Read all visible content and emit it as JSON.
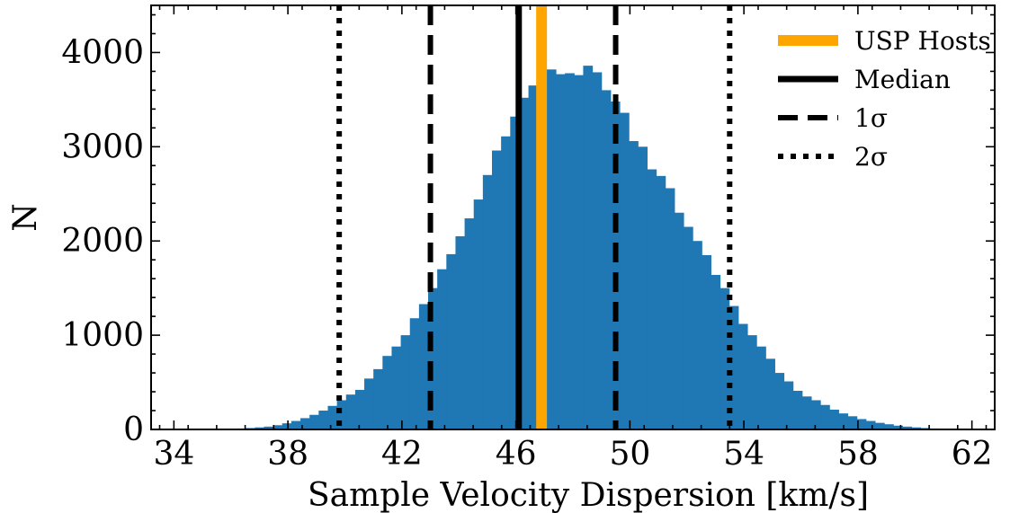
{
  "chart_data": {
    "type": "bar",
    "xlabel": "Sample Velocity Dispersion [km/s]",
    "ylabel": "N",
    "xlim": [
      33.2,
      62.8
    ],
    "ylim": [
      0,
      4500
    ],
    "x_ticks": [
      34,
      38,
      42,
      46,
      50,
      54,
      58,
      62
    ],
    "x_tick_labels": [
      "34",
      "38",
      "42",
      "46",
      "50",
      "54",
      "58",
      "62"
    ],
    "y_ticks": [
      0,
      1000,
      2000,
      3000,
      4000
    ],
    "y_tick_labels": [
      "0",
      "1000",
      "2000",
      "3000",
      "4000"
    ],
    "grid": false,
    "legend_position": "top-right",
    "histogram": {
      "color": "#1f77b4",
      "bin_start": 36.2,
      "bin_width": 0.32,
      "counts": [
        10,
        15,
        22,
        30,
        45,
        65,
        90,
        120,
        155,
        200,
        250,
        310,
        370,
        420,
        540,
        640,
        780,
        880,
        1000,
        1180,
        1330,
        1500,
        1700,
        1860,
        2050,
        2240,
        2440,
        2700,
        2960,
        3110,
        3320,
        3520,
        3650,
        3750,
        3820,
        3770,
        3780,
        3760,
        3860,
        3790,
        3600,
        3480,
        3360,
        3060,
        3000,
        2760,
        2690,
        2560,
        2300,
        2150,
        2000,
        1850,
        1640,
        1500,
        1310,
        1120,
        1000,
        880,
        750,
        600,
        510,
        410,
        350,
        310,
        260,
        210,
        170,
        140,
        110,
        90,
        70,
        55,
        40,
        30,
        22,
        15,
        10,
        6,
        4,
        2
      ]
    },
    "vertical_lines": [
      {
        "name": "USP Hosts",
        "x": 46.9,
        "color": "#ffa500",
        "style": "solid",
        "kind": "usp"
      },
      {
        "name": "Median",
        "x": 46.1,
        "color": "#000000",
        "style": "solid",
        "kind": "median"
      },
      {
        "name": "1σ",
        "x": 43.0,
        "color": "#000000",
        "style": "dashed",
        "kind": "sigma1"
      },
      {
        "name": "1σ",
        "x": 49.5,
        "color": "#000000",
        "style": "dashed",
        "kind": "sigma1"
      },
      {
        "name": "2σ",
        "x": 39.8,
        "color": "#000000",
        "style": "dotted",
        "kind": "sigma2"
      },
      {
        "name": "2σ",
        "x": 53.5,
        "color": "#000000",
        "style": "dotted",
        "kind": "sigma2"
      }
    ],
    "legend": [
      {
        "label": "USP Hosts",
        "color": "#ffa500",
        "style": "solid",
        "kind": "usp"
      },
      {
        "label": "Median",
        "color": "#000000",
        "style": "solid",
        "kind": "median"
      },
      {
        "label": "1σ",
        "color": "#000000",
        "style": "dashed",
        "kind": "sigma1"
      },
      {
        "label": "2σ",
        "color": "#000000",
        "style": "dotted",
        "kind": "sigma2"
      }
    ]
  }
}
